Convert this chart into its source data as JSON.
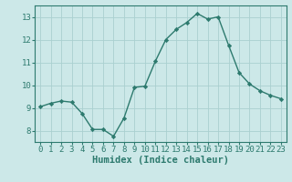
{
  "x": [
    0,
    1,
    2,
    3,
    4,
    5,
    6,
    7,
    8,
    9,
    10,
    11,
    12,
    13,
    14,
    15,
    16,
    17,
    18,
    19,
    20,
    21,
    22,
    23
  ],
  "y": [
    9.05,
    9.2,
    9.3,
    9.25,
    8.75,
    8.05,
    8.05,
    7.75,
    8.55,
    9.9,
    9.95,
    11.05,
    12.0,
    12.45,
    12.75,
    13.15,
    12.9,
    13.0,
    11.75,
    10.55,
    10.05,
    9.75,
    9.55,
    9.4
  ],
  "line_color": "#2d7a6e",
  "marker": "D",
  "marker_size": 2.2,
  "bg_color": "#cce8e8",
  "grid_color": "#aad0d0",
  "xlabel": "Humidex (Indice chaleur)",
  "xlim": [
    -0.5,
    23.5
  ],
  "ylim": [
    7.5,
    13.5
  ],
  "yticks": [
    8,
    9,
    10,
    11,
    12,
    13
  ],
  "xticks": [
    0,
    1,
    2,
    3,
    4,
    5,
    6,
    7,
    8,
    9,
    10,
    11,
    12,
    13,
    14,
    15,
    16,
    17,
    18,
    19,
    20,
    21,
    22,
    23
  ],
  "tick_label_fontsize": 6.5,
  "xlabel_fontsize": 7.5,
  "line_width": 1.0
}
